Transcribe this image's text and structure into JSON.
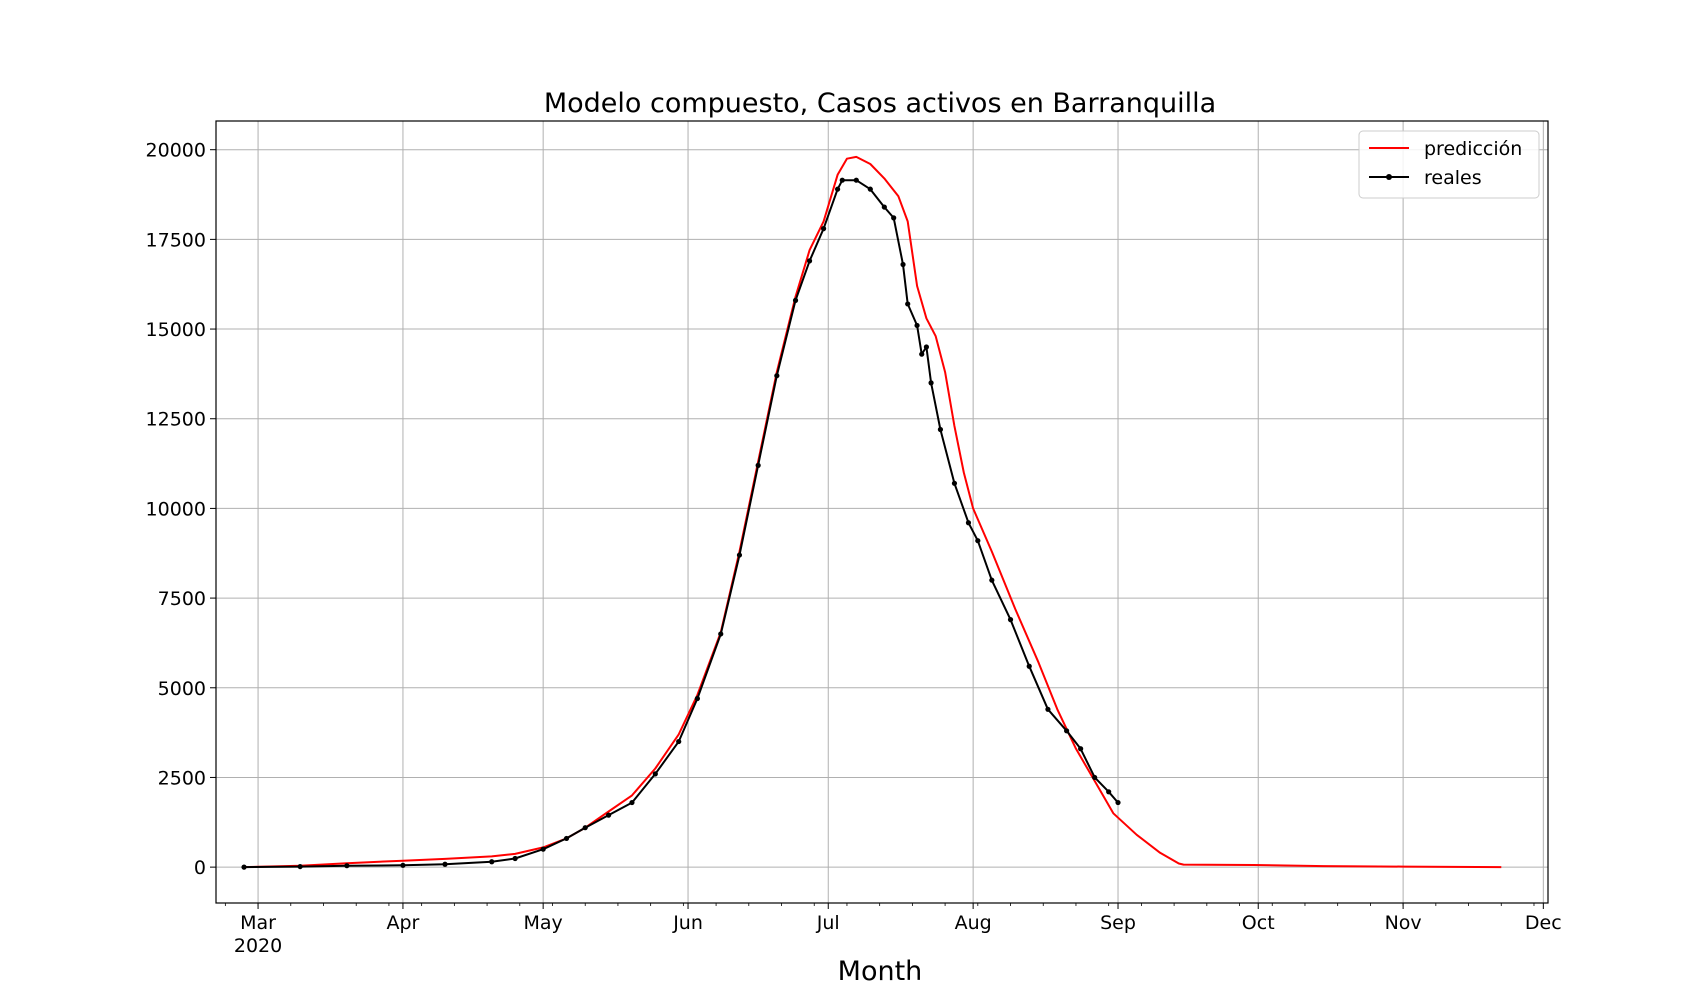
{
  "chart_data": {
    "type": "line",
    "title": "Modelo compuesto, Casos activos en Barranquilla",
    "xlabel": "Month",
    "ylabel": "",
    "x_axis_type": "date",
    "xlim": [
      "2020-02-21",
      "2020-12-02"
    ],
    "ylim": [
      -1000,
      20800
    ],
    "grid": true,
    "legend_position": "top-right",
    "x_ticks": [
      {
        "date": "2020-03-01",
        "label": "Mar",
        "sublabel": "2020"
      },
      {
        "date": "2020-04-01",
        "label": "Apr",
        "sublabel": ""
      },
      {
        "date": "2020-05-01",
        "label": "May",
        "sublabel": ""
      },
      {
        "date": "2020-06-01",
        "label": "Jun",
        "sublabel": ""
      },
      {
        "date": "2020-07-01",
        "label": "Jul",
        "sublabel": ""
      },
      {
        "date": "2020-08-01",
        "label": "Aug",
        "sublabel": ""
      },
      {
        "date": "2020-09-01",
        "label": "Sep",
        "sublabel": ""
      },
      {
        "date": "2020-10-01",
        "label": "Oct",
        "sublabel": ""
      },
      {
        "date": "2020-11-01",
        "label": "Nov",
        "sublabel": ""
      },
      {
        "date": "2020-12-01",
        "label": "Dec",
        "sublabel": ""
      }
    ],
    "y_ticks": [
      0,
      2500,
      5000,
      7500,
      10000,
      12500,
      15000,
      17500,
      20000
    ],
    "series": [
      {
        "name": "predicción",
        "color": "#ff0000",
        "marker": false,
        "points": [
          [
            "2020-02-27",
            0
          ],
          [
            "2020-03-10",
            40
          ],
          [
            "2020-03-20",
            110
          ],
          [
            "2020-04-01",
            180
          ],
          [
            "2020-04-10",
            230
          ],
          [
            "2020-04-20",
            300
          ],
          [
            "2020-04-25",
            370
          ],
          [
            "2020-05-01",
            550
          ],
          [
            "2020-05-06",
            800
          ],
          [
            "2020-05-10",
            1100
          ],
          [
            "2020-05-15",
            1550
          ],
          [
            "2020-05-20",
            2000
          ],
          [
            "2020-05-25",
            2750
          ],
          [
            "2020-05-30",
            3700
          ],
          [
            "2020-06-03",
            4800
          ],
          [
            "2020-06-08",
            6550
          ],
          [
            "2020-06-12",
            8800
          ],
          [
            "2020-06-16",
            11300
          ],
          [
            "2020-06-20",
            13800
          ],
          [
            "2020-06-24",
            15900
          ],
          [
            "2020-06-27",
            17200
          ],
          [
            "2020-06-30",
            18000
          ],
          [
            "2020-07-03",
            19300
          ],
          [
            "2020-07-05",
            19750
          ],
          [
            "2020-07-07",
            19800
          ],
          [
            "2020-07-10",
            19600
          ],
          [
            "2020-07-13",
            19200
          ],
          [
            "2020-07-16",
            18700
          ],
          [
            "2020-07-18",
            18000
          ],
          [
            "2020-07-20",
            16200
          ],
          [
            "2020-07-22",
            15300
          ],
          [
            "2020-07-24",
            14800
          ],
          [
            "2020-07-26",
            13800
          ],
          [
            "2020-07-28",
            12300
          ],
          [
            "2020-07-30",
            11000
          ],
          [
            "2020-08-01",
            10000
          ],
          [
            "2020-08-05",
            8800
          ],
          [
            "2020-08-10",
            7200
          ],
          [
            "2020-08-15",
            5700
          ],
          [
            "2020-08-19",
            4400
          ],
          [
            "2020-08-23",
            3300
          ],
          [
            "2020-08-27",
            2400
          ],
          [
            "2020-08-31",
            1500
          ],
          [
            "2020-09-05",
            900
          ],
          [
            "2020-09-10",
            400
          ],
          [
            "2020-09-14",
            100
          ],
          [
            "2020-09-15",
            70
          ],
          [
            "2020-09-30",
            60
          ],
          [
            "2020-10-15",
            30
          ],
          [
            "2020-11-01",
            15
          ],
          [
            "2020-11-22",
            0
          ]
        ]
      },
      {
        "name": "reales",
        "color": "#000000",
        "marker": true,
        "points": [
          [
            "2020-02-27",
            0
          ],
          [
            "2020-03-10",
            15
          ],
          [
            "2020-03-20",
            40
          ],
          [
            "2020-04-01",
            50
          ],
          [
            "2020-04-10",
            80
          ],
          [
            "2020-04-20",
            150
          ],
          [
            "2020-04-25",
            240
          ],
          [
            "2020-05-01",
            500
          ],
          [
            "2020-05-06",
            800
          ],
          [
            "2020-05-10",
            1100
          ],
          [
            "2020-05-15",
            1450
          ],
          [
            "2020-05-20",
            1800
          ],
          [
            "2020-05-25",
            2600
          ],
          [
            "2020-05-30",
            3500
          ],
          [
            "2020-06-03",
            4700
          ],
          [
            "2020-06-08",
            6500
          ],
          [
            "2020-06-12",
            8700
          ],
          [
            "2020-06-16",
            11200
          ],
          [
            "2020-06-20",
            13700
          ],
          [
            "2020-06-24",
            15800
          ],
          [
            "2020-06-27",
            16900
          ],
          [
            "2020-06-30",
            17800
          ],
          [
            "2020-07-03",
            18900
          ],
          [
            "2020-07-04",
            19150
          ],
          [
            "2020-07-07",
            19150
          ],
          [
            "2020-07-10",
            18900
          ],
          [
            "2020-07-13",
            18400
          ],
          [
            "2020-07-15",
            18100
          ],
          [
            "2020-07-17",
            16800
          ],
          [
            "2020-07-18",
            15700
          ],
          [
            "2020-07-20",
            15100
          ],
          [
            "2020-07-21",
            14300
          ],
          [
            "2020-07-22",
            14500
          ],
          [
            "2020-07-23",
            13500
          ],
          [
            "2020-07-25",
            12200
          ],
          [
            "2020-07-28",
            10700
          ],
          [
            "2020-07-31",
            9600
          ],
          [
            "2020-08-02",
            9100
          ],
          [
            "2020-08-05",
            8000
          ],
          [
            "2020-08-09",
            6900
          ],
          [
            "2020-08-13",
            5600
          ],
          [
            "2020-08-17",
            4400
          ],
          [
            "2020-08-21",
            3800
          ],
          [
            "2020-08-24",
            3300
          ],
          [
            "2020-08-27",
            2500
          ],
          [
            "2020-08-30",
            2100
          ],
          [
            "2020-09-01",
            1800
          ]
        ]
      }
    ]
  }
}
